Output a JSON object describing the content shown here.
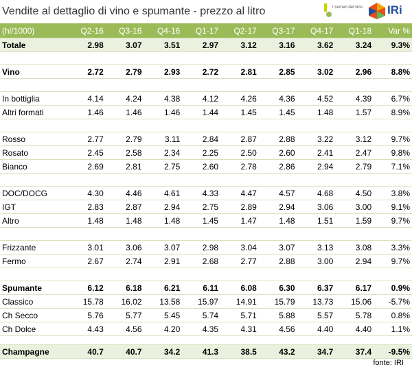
{
  "header": {
    "title": "Vendite al dettaglio di vino e spumante - prezzo al litro",
    "logo_left": "I numeri del vino",
    "logo_right": "IRi"
  },
  "table": {
    "columns": [
      "(hl/1000)",
      "Q2-16",
      "Q3-16",
      "Q4-16",
      "Q1-17",
      "Q2-17",
      "Q3-17",
      "Q4-17",
      "Q1-18",
      "Var %"
    ],
    "groups": [
      [
        {
          "bold": true,
          "shade": true,
          "cells": [
            "Totale",
            "2.98",
            "3.07",
            "3.51",
            "2.97",
            "3.12",
            "3.16",
            "3.62",
            "3.24",
            "9.3%"
          ]
        }
      ],
      [
        {
          "bold": true,
          "cells": [
            "Vino",
            "2.72",
            "2.79",
            "2.93",
            "2.72",
            "2.81",
            "2.85",
            "3.02",
            "2.96",
            "8.8%"
          ]
        }
      ],
      [
        {
          "cells": [
            "In bottiglia",
            "4.14",
            "4.24",
            "4.38",
            "4.12",
            "4.26",
            "4.36",
            "4.52",
            "4.39",
            "6.7%"
          ]
        },
        {
          "cells": [
            "Altri formati",
            "1.46",
            "1.46",
            "1.46",
            "1.44",
            "1.45",
            "1.45",
            "1.48",
            "1.57",
            "8.9%"
          ]
        }
      ],
      [
        {
          "cells": [
            "Rosso",
            "2.77",
            "2.79",
            "3.11",
            "2.84",
            "2.87",
            "2.88",
            "3.22",
            "3.12",
            "9.7%"
          ]
        },
        {
          "cells": [
            "Rosato",
            "2.45",
            "2.58",
            "2.34",
            "2.25",
            "2.50",
            "2.60",
            "2.41",
            "2.47",
            "9.8%"
          ]
        },
        {
          "cells": [
            "Bianco",
            "2.69",
            "2.81",
            "2.75",
            "2.60",
            "2.78",
            "2.86",
            "2.94",
            "2.79",
            "7.1%"
          ]
        }
      ],
      [
        {
          "cells": [
            "DOC/DOCG",
            "4.30",
            "4.46",
            "4.61",
            "4.33",
            "4.47",
            "4.57",
            "4.68",
            "4.50",
            "3.8%"
          ]
        },
        {
          "cells": [
            "IGT",
            "2.83",
            "2.87",
            "2.94",
            "2.75",
            "2.89",
            "2.94",
            "3.06",
            "3.00",
            "9.1%"
          ]
        },
        {
          "cells": [
            "Altro",
            "1.48",
            "1.48",
            "1.48",
            "1.45",
            "1.47",
            "1.48",
            "1.51",
            "1.59",
            "9.7%"
          ]
        }
      ],
      [
        {
          "cells": [
            "Frizzante",
            "3.01",
            "3.06",
            "3.07",
            "2.98",
            "3.04",
            "3.07",
            "3.13",
            "3.08",
            "3.3%"
          ]
        },
        {
          "cells": [
            "Fermo",
            "2.67",
            "2.74",
            "2.91",
            "2.68",
            "2.77",
            "2.88",
            "3.00",
            "2.94",
            "9.7%"
          ]
        }
      ],
      [
        {
          "bold": true,
          "cells": [
            "Spumante",
            "6.12",
            "6.18",
            "6.21",
            "6.11",
            "6.08",
            "6.30",
            "6.37",
            "6.17",
            "0.9%"
          ]
        },
        {
          "cells": [
            "Classico",
            "15.78",
            "16.02",
            "13.58",
            "15.97",
            "14.91",
            "15.79",
            "13.73",
            "15.06",
            "-5.7%"
          ]
        },
        {
          "cells": [
            "Ch Secco",
            "5.76",
            "5.77",
            "5.45",
            "5.74",
            "5.71",
            "5.88",
            "5.57",
            "5.78",
            "0.8%"
          ]
        },
        {
          "cells": [
            "Ch Dolce",
            "4.43",
            "4.56",
            "4.20",
            "4.35",
            "4.31",
            "4.56",
            "4.40",
            "4.40",
            "1.1%"
          ]
        }
      ],
      [
        {
          "bold": true,
          "shade": true,
          "cells": [
            "Champagne",
            "40.7",
            "40.7",
            "34.2",
            "41.3",
            "38.5",
            "43.2",
            "34.7",
            "37.4",
            "-9.5%"
          ]
        }
      ]
    ],
    "source": "fonte: IRI"
  }
}
